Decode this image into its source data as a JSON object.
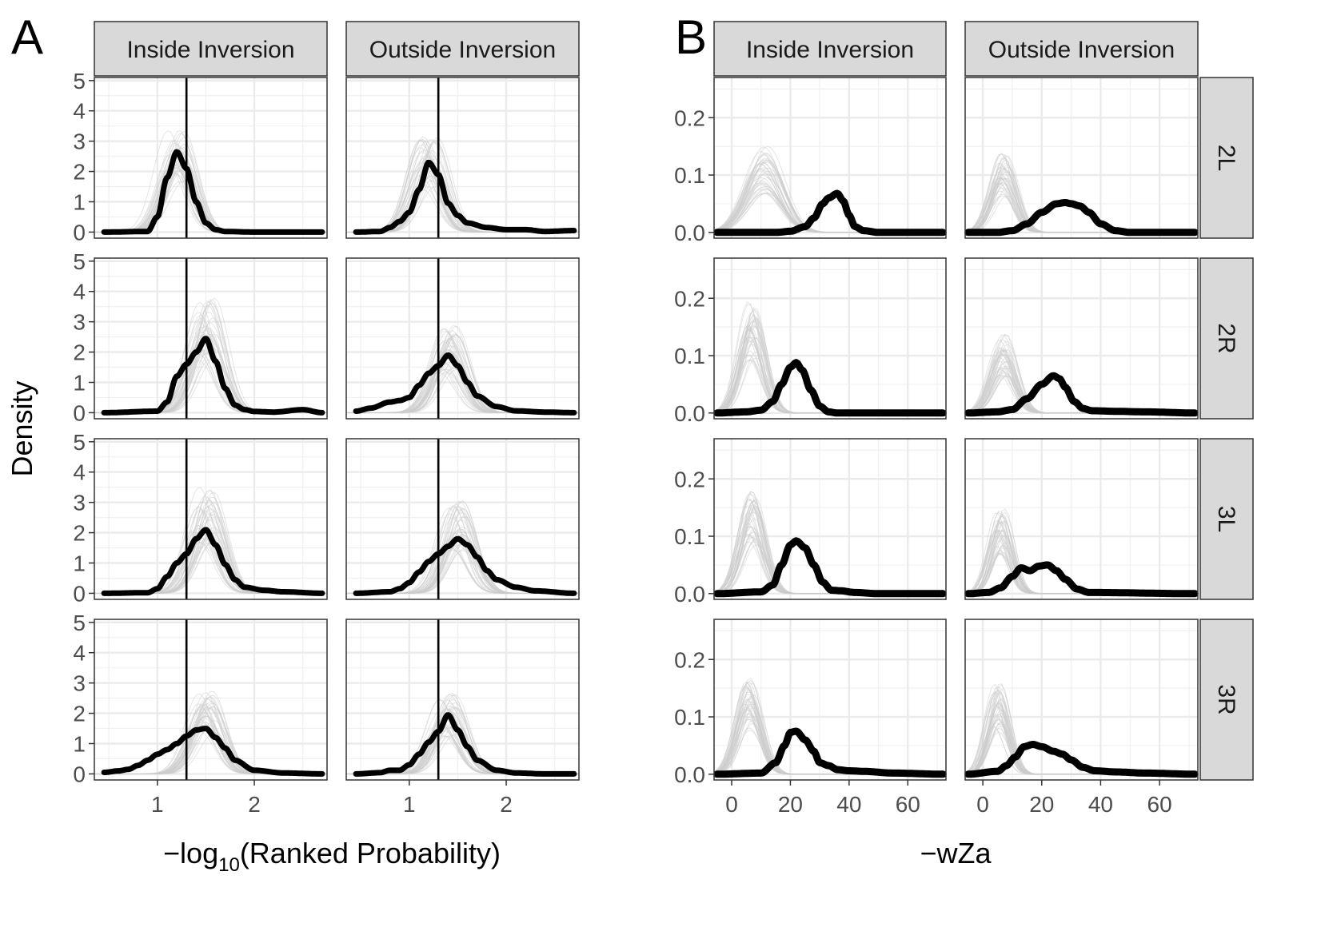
{
  "panels": [
    {
      "letter": "A"
    },
    {
      "letter": "B"
    }
  ],
  "chart_data": [
    {
      "type": "line",
      "panel": "A",
      "facet_columns": [
        "Inside Inversion",
        "Outside Inversion"
      ],
      "facet_rows": [
        "2L",
        "2R",
        "3L",
        "3R"
      ],
      "row_strips_shown": false,
      "xlabel": "−log",
      "xlabel_sub": "10",
      "xlabel_rest": "(Ranked Probability)",
      "ylabel": "Density",
      "xlim": [
        0.35,
        2.75
      ],
      "ylim": [
        -0.2,
        5.1
      ],
      "x_ticks": [
        1,
        2
      ],
      "x_tick_labels": [
        "1",
        "2"
      ],
      "y_ticks": [
        0,
        1,
        2,
        3,
        4,
        5
      ],
      "y_tick_labels": [
        "0",
        "1",
        "2",
        "3",
        "4",
        "5"
      ],
      "vline": 1.3,
      "grid": true,
      "null_color": "#cccccc",
      "observed_color": "#000000",
      "facets": [
        {
          "row": "2L",
          "col": "Inside Inversion",
          "null_peak": 3.5,
          "observed": {
            "x": [
              0.45,
              0.9,
              1.0,
              1.1,
              1.2,
              1.3,
              1.4,
              1.5,
              1.6,
              1.7,
              2.0,
              2.7
            ],
            "y": [
              0,
              0.02,
              0.5,
              1.8,
              2.65,
              2.1,
              1.0,
              0.3,
              0.08,
              0.02,
              0,
              0
            ]
          }
        },
        {
          "row": "2L",
          "col": "Outside Inversion",
          "null_peak": 3.2,
          "observed": {
            "x": [
              0.45,
              0.7,
              0.8,
              0.9,
              1.0,
              1.1,
              1.2,
              1.3,
              1.4,
              1.5,
              1.6,
              1.8,
              2.0,
              2.2,
              2.4,
              2.7
            ],
            "y": [
              0,
              0.02,
              0.15,
              0.35,
              0.65,
              1.4,
              2.3,
              1.9,
              0.95,
              0.55,
              0.3,
              0.15,
              0.08,
              0.08,
              0.02,
              0.05
            ]
          }
        },
        {
          "row": "2R",
          "col": "Inside Inversion",
          "null_peak": 3.8,
          "observed": {
            "x": [
              0.45,
              1.0,
              1.1,
              1.2,
              1.3,
              1.4,
              1.5,
              1.6,
              1.7,
              1.8,
              1.9,
              2.0,
              2.2,
              2.5,
              2.7
            ],
            "y": [
              0,
              0.05,
              0.35,
              1.2,
              1.6,
              2.0,
              2.45,
              1.7,
              0.8,
              0.25,
              0.1,
              0.04,
              0.02,
              0.1,
              0
            ]
          }
        },
        {
          "row": "2R",
          "col": "Outside Inversion",
          "null_peak": 2.9,
          "observed": {
            "x": [
              0.45,
              0.6,
              0.8,
              0.9,
              1.0,
              1.1,
              1.2,
              1.3,
              1.4,
              1.5,
              1.6,
              1.7,
              1.9,
              2.1,
              2.4,
              2.7
            ],
            "y": [
              0.05,
              0.15,
              0.35,
              0.4,
              0.5,
              0.9,
              1.3,
              1.55,
              1.9,
              1.55,
              1.0,
              0.55,
              0.2,
              0.06,
              0.02,
              0
            ]
          }
        },
        {
          "row": "3L",
          "col": "Inside Inversion",
          "null_peak": 3.6,
          "observed": {
            "x": [
              0.45,
              0.9,
              1.0,
              1.1,
              1.2,
              1.3,
              1.4,
              1.5,
              1.6,
              1.7,
              1.8,
              1.9,
              2.1,
              2.3,
              2.7
            ],
            "y": [
              0,
              0.02,
              0.15,
              0.55,
              1.0,
              1.3,
              1.8,
              2.1,
              1.6,
              0.95,
              0.45,
              0.2,
              0.1,
              0.05,
              0
            ]
          }
        },
        {
          "row": "3L",
          "col": "Outside Inversion",
          "null_peak": 3.1,
          "observed": {
            "x": [
              0.45,
              0.8,
              0.9,
              1.0,
              1.1,
              1.2,
              1.3,
              1.4,
              1.5,
              1.6,
              1.7,
              1.8,
              1.9,
              2.1,
              2.3,
              2.7
            ],
            "y": [
              0,
              0.05,
              0.15,
              0.35,
              0.7,
              1.05,
              1.3,
              1.55,
              1.8,
              1.6,
              1.2,
              0.75,
              0.45,
              0.2,
              0.08,
              0
            ]
          }
        },
        {
          "row": "3R",
          "col": "Inside Inversion",
          "null_peak": 2.9,
          "observed": {
            "x": [
              0.45,
              0.6,
              0.7,
              0.8,
              0.9,
              1.0,
              1.1,
              1.2,
              1.3,
              1.4,
              1.5,
              1.6,
              1.7,
              1.8,
              2.0,
              2.3,
              2.7
            ],
            "y": [
              0.05,
              0.1,
              0.15,
              0.28,
              0.45,
              0.65,
              0.8,
              1.0,
              1.25,
              1.45,
              1.5,
              1.2,
              0.85,
              0.45,
              0.12,
              0.03,
              0
            ]
          }
        },
        {
          "row": "3R",
          "col": "Outside Inversion",
          "null_peak": 2.7,
          "observed": {
            "x": [
              0.45,
              0.7,
              0.8,
              0.9,
              1.0,
              1.1,
              1.2,
              1.3,
              1.4,
              1.5,
              1.6,
              1.7,
              1.9,
              2.1,
              2.4,
              2.7
            ],
            "y": [
              0,
              0.04,
              0.12,
              0.12,
              0.3,
              0.65,
              1.05,
              1.4,
              1.95,
              1.45,
              0.9,
              0.45,
              0.12,
              0.03,
              0,
              0
            ]
          }
        }
      ]
    },
    {
      "type": "line",
      "panel": "B",
      "facet_columns": [
        "Inside Inversion",
        "Outside Inversion"
      ],
      "facet_rows": [
        "2L",
        "2R",
        "3L",
        "3R"
      ],
      "row_strips_shown": true,
      "xlabel": "−wZa",
      "ylabel": "",
      "xlim": [
        -6,
        73
      ],
      "ylim": [
        -0.01,
        0.27
      ],
      "x_ticks": [
        0,
        20,
        40,
        60
      ],
      "x_tick_labels": [
        "0",
        "20",
        "40",
        "60"
      ],
      "y_ticks": [
        0.0,
        0.1,
        0.2
      ],
      "y_tick_labels": [
        "0.0",
        "0.1",
        "0.2"
      ],
      "grid": true,
      "null_color": "#cccccc",
      "observed_color": "#000000",
      "facets": [
        {
          "row": "2L",
          "col": "Inside Inversion",
          "null_peak": 0.15,
          "null_center": 11,
          "null_sd": 6,
          "observed": {
            "x": [
              -5,
              15,
              20,
              25,
              28,
              31,
              33,
              36,
              38,
              40,
              42,
              45,
              50,
              72
            ],
            "y": [
              0,
              0,
              0.002,
              0.01,
              0.025,
              0.05,
              0.06,
              0.068,
              0.055,
              0.03,
              0.01,
              0.003,
              0,
              0
            ]
          }
        },
        {
          "row": "2L",
          "col": "Outside Inversion",
          "null_peak": 0.14,
          "null_center": 7,
          "null_sd": 4,
          "observed": {
            "x": [
              -5,
              5,
              10,
              15,
              20,
              25,
              28,
              30,
              33,
              36,
              40,
              45,
              50,
              72
            ],
            "y": [
              0,
              0,
              0.003,
              0.015,
              0.035,
              0.05,
              0.052,
              0.05,
              0.046,
              0.035,
              0.015,
              0.003,
              0,
              0
            ]
          }
        },
        {
          "row": "2R",
          "col": "Inside Inversion",
          "null_peak": 0.2,
          "null_center": 7,
          "null_sd": 4,
          "observed": {
            "x": [
              -5,
              5,
              10,
              14,
              17,
              20,
              22,
              24,
              27,
              30,
              33,
              36,
              72
            ],
            "y": [
              0,
              0.002,
              0.005,
              0.02,
              0.05,
              0.08,
              0.088,
              0.075,
              0.04,
              0.012,
              0.002,
              0,
              0
            ]
          }
        },
        {
          "row": "2R",
          "col": "Outside Inversion",
          "null_peak": 0.14,
          "null_center": 7,
          "null_sd": 4,
          "observed": {
            "x": [
              -5,
              5,
              10,
              15,
              20,
              24,
              26,
              28,
              31,
              34,
              37,
              45,
              55,
              72
            ],
            "y": [
              0,
              0.002,
              0.006,
              0.025,
              0.05,
              0.065,
              0.06,
              0.045,
              0.02,
              0.008,
              0.004,
              0.003,
              0.002,
              0
            ]
          }
        },
        {
          "row": "3L",
          "col": "Inside Inversion",
          "null_peak": 0.18,
          "null_center": 7,
          "null_sd": 4,
          "observed": {
            "x": [
              -5,
              10,
              14,
              17,
              20,
              22,
              25,
              28,
              31,
              34,
              37,
              42,
              50,
              72
            ],
            "y": [
              0,
              0.003,
              0.015,
              0.05,
              0.085,
              0.092,
              0.08,
              0.05,
              0.02,
              0.006,
              0.005,
              0.002,
              0,
              0
            ]
          }
        },
        {
          "row": "3L",
          "col": "Outside Inversion",
          "null_peak": 0.15,
          "null_center": 6,
          "null_sd": 3.5,
          "observed": {
            "x": [
              -5,
              2,
              6,
              10,
              13,
              16,
              19,
              22,
              25,
              28,
              32,
              36,
              72
            ],
            "y": [
              0,
              0.002,
              0.01,
              0.03,
              0.045,
              0.04,
              0.048,
              0.05,
              0.04,
              0.025,
              0.008,
              0.002,
              0
            ]
          }
        },
        {
          "row": "3R",
          "col": "Inside Inversion",
          "null_peak": 0.17,
          "null_center": 6,
          "null_sd": 4,
          "observed": {
            "x": [
              -5,
              10,
              15,
              18,
              20,
              22,
              25,
              28,
              30,
              33,
              36,
              40,
              45,
              55,
              72
            ],
            "y": [
              0,
              0.002,
              0.02,
              0.05,
              0.073,
              0.075,
              0.06,
              0.04,
              0.02,
              0.015,
              0.008,
              0.006,
              0.005,
              0.002,
              0
            ]
          }
        },
        {
          "row": "3R",
          "col": "Outside Inversion",
          "null_peak": 0.16,
          "null_center": 5,
          "null_sd": 3.5,
          "observed": {
            "x": [
              -5,
              5,
              8,
              11,
              14,
              17,
              20,
              24,
              27,
              30,
              34,
              38,
              45,
              55,
              72
            ],
            "y": [
              0,
              0.005,
              0.015,
              0.03,
              0.048,
              0.052,
              0.048,
              0.04,
              0.035,
              0.025,
              0.012,
              0.006,
              0.004,
              0.002,
              0
            ]
          }
        }
      ]
    }
  ]
}
